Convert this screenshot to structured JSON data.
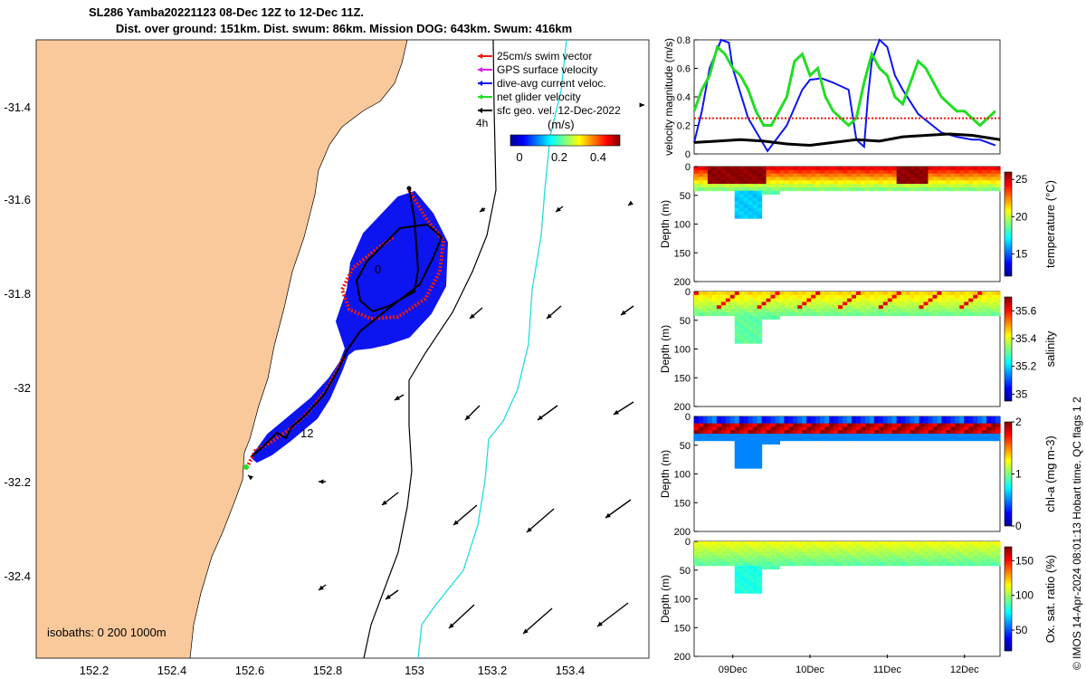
{
  "title": {
    "line1": "SL286 Yamba20221123 08-Dec 12Z to 12-Dec 11Z.",
    "line2": "Dist. over ground: 151km. Dist. swum: 86km. Mission DOG: 643km. Swum: 416km"
  },
  "copyright": "© IMOS 14-Apr-2024 08:01:13 Hobart time. QC flags 1  2",
  "colors": {
    "land": "#f9c99b",
    "dive_avg": "#0c14f0",
    "swim": "#f01a0a",
    "net": "#22dd22",
    "gps": "#e020e0",
    "isobath_200": "#000000",
    "isobath_1000": "#22dddd"
  },
  "map": {
    "xticks": [
      "152.2",
      "152.4",
      "152.6",
      "152.8",
      "153",
      "153.2",
      "153.4"
    ],
    "yticks": [
      "-31.4",
      "-31.6",
      "-31.8",
      "-32",
      "-32.2",
      "-32.4"
    ],
    "legend": [
      {
        "label": "25cm/s swim vector",
        "color": "#f01a0a",
        "icon": "arrow-icon"
      },
      {
        "label": "GPS surface velocity",
        "color": "#e020e0",
        "icon": "arrow-icon"
      },
      {
        "label": "dive-avg current veloc.",
        "color": "#0c14f0",
        "icon": "arrow-icon"
      },
      {
        "label": "net glider velocity",
        "color": "#22dd22",
        "icon": "arrow-icon"
      },
      {
        "label": "sfc geo. vel. 12-Dec-2022",
        "color": "#000000",
        "icon": "arrow-icon"
      }
    ],
    "legend_extra": "4h",
    "colorbar": {
      "label": "(m/s)",
      "ticks": [
        "0",
        "0.2",
        "0.4"
      ]
    },
    "track_labels": [
      "0",
      "12"
    ],
    "isobath_label": "isobaths: 0   200  1000m"
  },
  "chart_data": [
    {
      "type": "line",
      "title": "",
      "xlabel": "",
      "ylabel": "velocity magnitude (m/s)",
      "xlim_days": [
        8.5,
        12.46
      ],
      "ylim": [
        0,
        0.8
      ],
      "yticks": [
        "0",
        "0.2",
        "0.4",
        "0.6",
        "0.8"
      ],
      "series": [
        {
          "name": "dive-avg current veloc.",
          "color": "#0c14f0",
          "x": [
            8.5,
            8.6,
            8.7,
            8.85,
            8.95,
            9.0,
            9.2,
            9.45,
            9.7,
            9.9,
            10.0,
            10.15,
            10.3,
            10.5,
            10.6,
            10.7,
            10.75,
            10.8,
            10.9,
            11.0,
            11.1,
            11.2,
            11.4,
            11.7,
            11.9,
            12.1,
            12.2,
            12.3,
            12.4
          ],
          "y": [
            0.08,
            0.3,
            0.6,
            0.8,
            0.78,
            0.6,
            0.25,
            0.02,
            0.2,
            0.45,
            0.52,
            0.53,
            0.5,
            0.45,
            0.1,
            0.05,
            0.4,
            0.65,
            0.8,
            0.75,
            0.55,
            0.45,
            0.28,
            0.15,
            0.12,
            0.1,
            0.1,
            0.08,
            0.06
          ]
        },
        {
          "name": "net glider velocity",
          "color": "#22dd22",
          "x": [
            8.5,
            8.6,
            8.7,
            8.8,
            8.9,
            9.0,
            9.1,
            9.2,
            9.3,
            9.4,
            9.5,
            9.6,
            9.7,
            9.8,
            9.9,
            10.0,
            10.1,
            10.2,
            10.3,
            10.4,
            10.5,
            10.6,
            10.7,
            10.8,
            10.9,
            11.0,
            11.1,
            11.2,
            11.3,
            11.4,
            11.5,
            11.6,
            11.7,
            11.8,
            11.9,
            12.0,
            12.1,
            12.2,
            12.3,
            12.4
          ],
          "y": [
            0.3,
            0.45,
            0.55,
            0.75,
            0.7,
            0.6,
            0.55,
            0.45,
            0.3,
            0.2,
            0.2,
            0.3,
            0.4,
            0.65,
            0.7,
            0.55,
            0.6,
            0.4,
            0.3,
            0.25,
            0.2,
            0.25,
            0.5,
            0.7,
            0.6,
            0.55,
            0.4,
            0.35,
            0.5,
            0.65,
            0.6,
            0.5,
            0.4,
            0.35,
            0.3,
            0.3,
            0.25,
            0.2,
            0.25,
            0.3
          ]
        },
        {
          "name": "25cm/s swim vector",
          "color": "#f01a0a",
          "x": [
            8.5,
            9.0,
            9.5,
            10.0,
            10.5,
            11.0,
            11.3,
            11.6,
            12.0,
            12.46
          ],
          "y": [
            0.25,
            0.25,
            0.25,
            0.25,
            0.25,
            0.25,
            0.25,
            0.25,
            0.25,
            0.25
          ]
        },
        {
          "name": "sfc geo. vel. 12-Dec-2022",
          "color": "#000000",
          "x": [
            8.5,
            8.8,
            9.1,
            9.4,
            9.7,
            10.0,
            10.3,
            10.6,
            10.9,
            11.2,
            11.5,
            11.8,
            12.1,
            12.46
          ],
          "y": [
            0.08,
            0.09,
            0.1,
            0.09,
            0.07,
            0.06,
            0.08,
            0.1,
            0.09,
            0.12,
            0.13,
            0.14,
            0.13,
            0.1
          ]
        }
      ]
    },
    {
      "type": "heatmap",
      "title": "temperature",
      "ylabel": "Depth (m)",
      "clabel": "temperature (°C)",
      "ylim": [
        200,
        0
      ],
      "yticks": [
        "0",
        "50",
        "100",
        "150",
        "200"
      ],
      "clim": [
        12,
        26
      ],
      "cticks": [
        "15",
        "20",
        "25"
      ],
      "surface_value": 24.5,
      "deep_value": 18.5,
      "max_value": 25.8
    },
    {
      "type": "heatmap",
      "title": "salinity",
      "ylabel": "Depth (m)",
      "clabel": "salinity",
      "ylim": [
        200,
        0
      ],
      "yticks": [
        "0",
        "50",
        "100",
        "150",
        "200"
      ],
      "clim": [
        34.95,
        35.7
      ],
      "cticks": [
        "35",
        "35.2",
        "35.4",
        "35.6"
      ],
      "surface_value": 35.45,
      "deep_value": 35.3,
      "max_value": 35.62
    },
    {
      "type": "heatmap",
      "title": "chl-a",
      "ylabel": "Depth (m)",
      "clabel": "chl-a (mg m-3)",
      "ylim": [
        200,
        0
      ],
      "yticks": [
        "0",
        "50",
        "100",
        "150",
        "200"
      ],
      "clim": [
        0,
        2
      ],
      "cticks": [
        "0",
        "1",
        "2"
      ],
      "surface_value": 0.2,
      "deep_value": 0.5,
      "max_value": 2.0
    },
    {
      "type": "heatmap",
      "title": "oxygen saturation",
      "ylabel": "Depth (m)",
      "clabel": "Ox. sat. ratio (%)",
      "ylim": [
        200,
        0
      ],
      "yticks": [
        "0",
        "50",
        "100",
        "150",
        "200"
      ],
      "clim": [
        20,
        170
      ],
      "cticks": [
        "50",
        "100",
        "150"
      ],
      "surface_value": 112,
      "deep_value": 88,
      "max_value": 122
    }
  ],
  "time_axis": {
    "ticks": [
      "09Dec",
      "10Dec",
      "11Dec",
      "12Dec"
    ]
  }
}
